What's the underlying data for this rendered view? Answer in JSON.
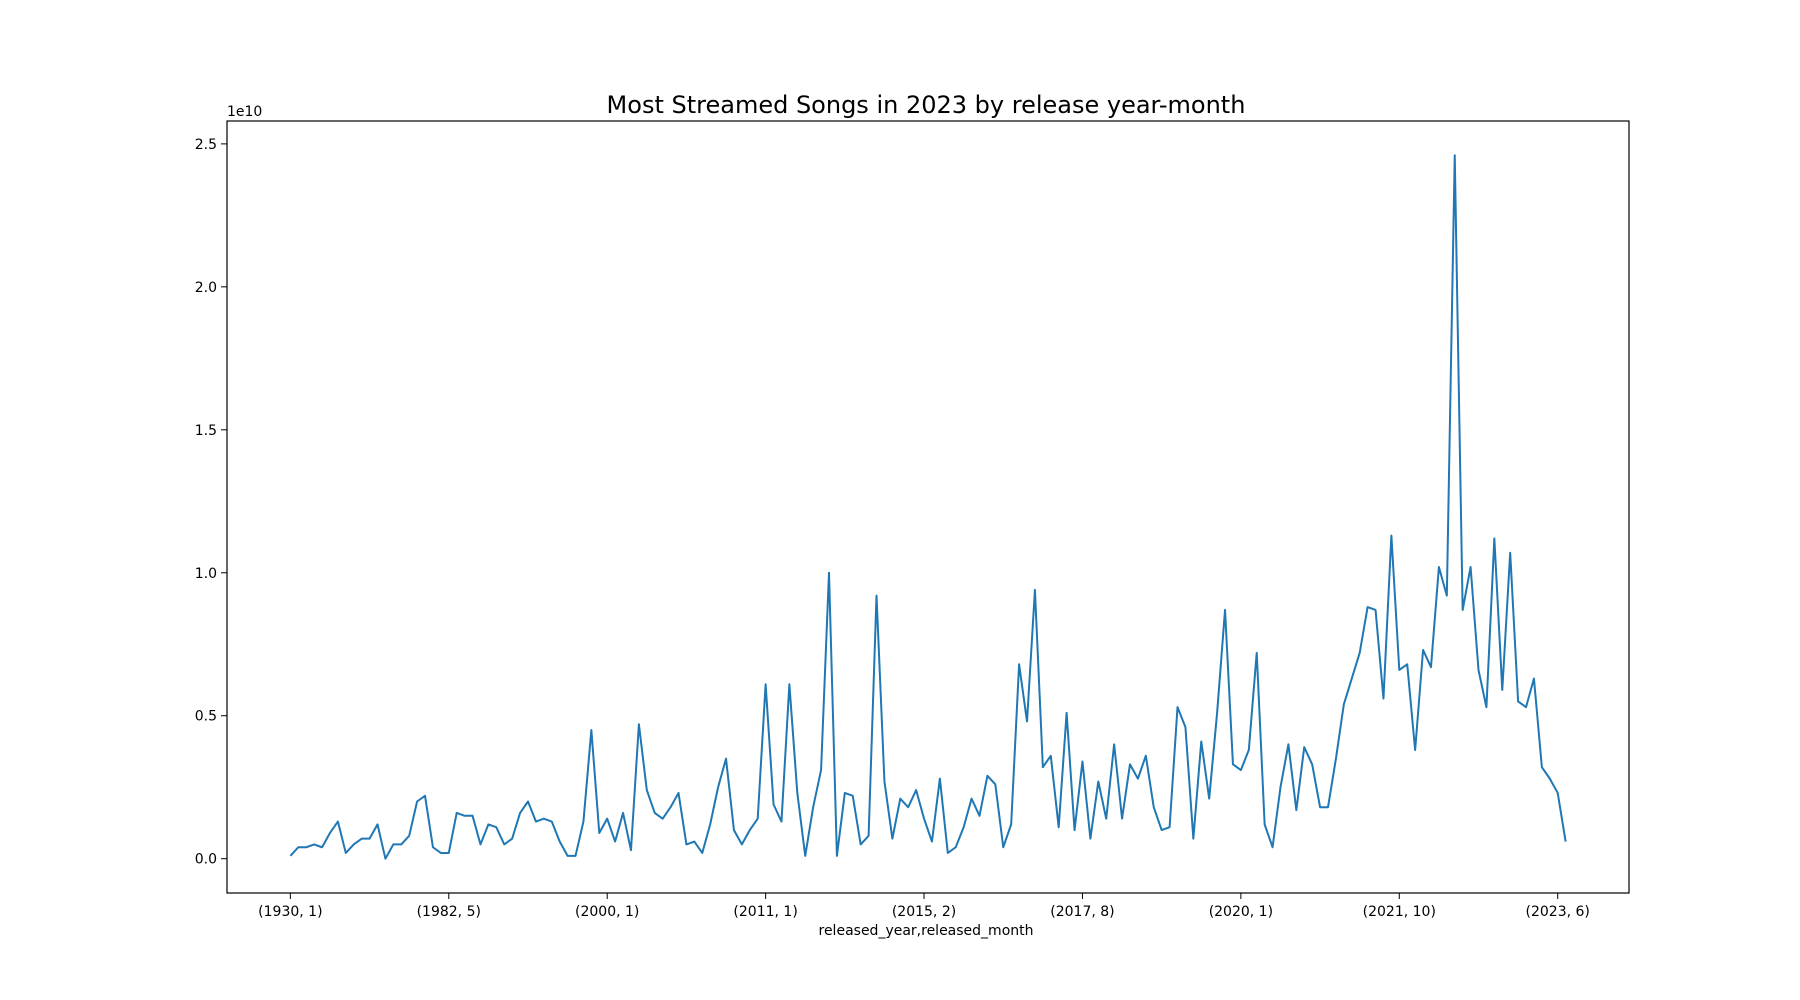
{
  "chart_data": {
    "type": "line",
    "title": "Most Streamed Songs in 2023 by release year-month",
    "xlabel": "released_year,released_month",
    "ylabel": "",
    "y_offset_label": "1e10",
    "y_scale_exponent": 10,
    "ylim": [
      -0.12,
      2.58
    ],
    "yticks": [
      0.0,
      0.5,
      1.0,
      1.5,
      2.0,
      2.5
    ],
    "ytick_labels": [
      "0.0",
      "0.5",
      "1.0",
      "1.5",
      "2.0",
      "2.5"
    ],
    "xticks": [
      {
        "index": 0,
        "label": "(1930, 1)"
      },
      {
        "index": 20,
        "label": "(1982, 5)"
      },
      {
        "index": 40,
        "label": "(2000, 1)"
      },
      {
        "index": 60,
        "label": "(2011, 1)"
      },
      {
        "index": 80,
        "label": "(2015, 2)"
      },
      {
        "index": 100,
        "label": "(2017, 8)"
      },
      {
        "index": 120,
        "label": "(2020, 1)"
      },
      {
        "index": 140,
        "label": "(2021, 10)"
      },
      {
        "index": 160,
        "label": "(2023, 6)"
      }
    ],
    "xlim_index": [
      -8,
      169
    ],
    "grid": false,
    "legend": "none",
    "color": "#1f77b4",
    "series": [
      {
        "values": [
          0.01,
          0.04,
          0.04,
          0.05,
          0.04,
          0.09,
          0.13,
          0.02,
          0.05,
          0.07,
          0.07,
          0.12,
          0.0,
          0.05,
          0.05,
          0.08,
          0.2,
          0.22,
          0.04,
          0.02,
          0.02,
          0.16,
          0.15,
          0.15,
          0.05,
          0.12,
          0.11,
          0.05,
          0.07,
          0.16,
          0.2,
          0.13,
          0.14,
          0.13,
          0.06,
          0.01,
          0.01,
          0.13,
          0.45,
          0.09,
          0.14,
          0.06,
          0.16,
          0.03,
          0.47,
          0.24,
          0.16,
          0.14,
          0.18,
          0.23,
          0.05,
          0.06,
          0.02,
          0.12,
          0.25,
          0.35,
          0.1,
          0.05,
          0.1,
          0.14,
          0.61,
          0.19,
          0.13,
          0.61,
          0.23,
          0.01,
          0.18,
          0.31,
          1.0,
          0.01,
          0.23,
          0.22,
          0.05,
          0.08,
          0.92,
          0.27,
          0.07,
          0.21,
          0.18,
          0.24,
          0.14,
          0.06,
          0.28,
          0.02,
          0.04,
          0.11,
          0.21,
          0.15,
          0.29,
          0.26,
          0.04,
          0.12,
          0.68,
          0.48,
          0.94,
          0.32,
          0.36,
          0.11,
          0.51,
          0.1,
          0.34,
          0.07,
          0.27,
          0.14,
          0.4,
          0.14,
          0.33,
          0.28,
          0.36,
          0.18,
          0.1,
          0.11,
          0.53,
          0.46,
          0.07,
          0.41,
          0.21,
          0.51,
          0.87,
          0.33,
          0.31,
          0.38,
          0.72,
          0.12,
          0.04,
          0.25,
          0.4,
          0.17,
          0.39,
          0.33,
          0.18,
          0.18,
          0.35,
          0.54,
          0.63,
          0.72,
          0.88,
          0.87,
          0.56,
          1.13,
          0.66,
          0.68,
          0.38,
          0.73,
          0.67,
          1.02,
          0.92,
          2.46,
          0.87,
          1.02,
          0.66,
          0.53,
          1.12,
          0.59,
          1.07,
          0.55,
          0.53,
          0.63,
          0.32,
          0.28,
          0.23,
          0.06
        ]
      }
    ]
  }
}
